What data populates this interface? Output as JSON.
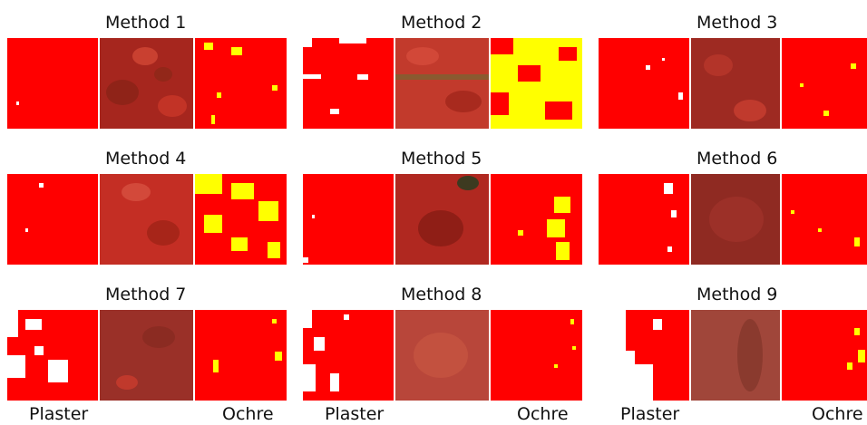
{
  "panels": [
    {
      "title": "Method 1"
    },
    {
      "title": "Method 2"
    },
    {
      "title": "Method 3"
    },
    {
      "title": "Method 4"
    },
    {
      "title": "Method 5"
    },
    {
      "title": "Method 6"
    },
    {
      "title": "Method 7"
    },
    {
      "title": "Method 8"
    },
    {
      "title": "Method 9"
    }
  ],
  "bottom_labels": {
    "plaster": "Plaster",
    "ochre": "Ochre"
  },
  "colors": {
    "plaster_red": "#ff0000",
    "ochre_yellow": "#ffff00",
    "gap_white": "#ffffff",
    "photo_base": "#b52a22"
  }
}
